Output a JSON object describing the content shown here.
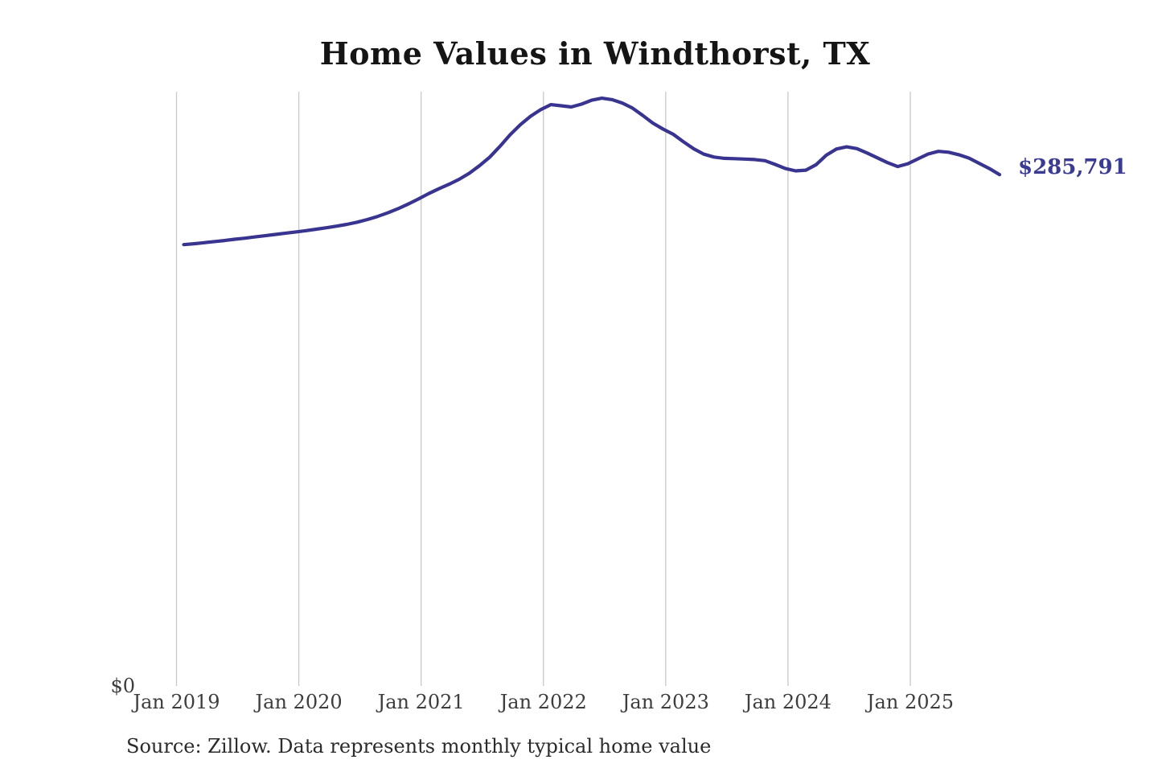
{
  "chart": {
    "title": "Home Values in Windthorst, TX",
    "end_label": "$285,791",
    "y_zero_label": "$0",
    "source": "Source: Zillow. Data represents monthly typical home value",
    "colors": {
      "line": "#39348f",
      "end_label": "#3b3b93",
      "grid": "#c9c9c9",
      "tick_text": "#3d3d3d",
      "title_text": "#151515",
      "source_text": "#2b2b2b",
      "background": "#ffffff"
    }
  },
  "chart_data": {
    "type": "line",
    "title": "Home Values in Windthorst, TX",
    "xlabel": "",
    "ylabel": "",
    "x_tick_labels": [
      "Jan 2019",
      "Jan 2020",
      "Jan 2021",
      "Jan 2022",
      "Jan 2023",
      "Jan 2024",
      "Jan 2025"
    ],
    "y_tick_labels": [
      "$0"
    ],
    "grid": "vertical-only",
    "legend": "none",
    "ylim": [
      0,
      331000
    ],
    "frequency": "monthly",
    "x_start": "Jan 2019",
    "x_end": "Sep 2025",
    "final_value": 285791,
    "final_value_label": "$285,791",
    "source": "Source: Zillow. Data represents monthly typical home value",
    "series": [
      {
        "name": "Typical home value (USD)",
        "months": [
          "2019-01",
          "2019-02",
          "2019-03",
          "2019-04",
          "2019-05",
          "2019-06",
          "2019-07",
          "2019-08",
          "2019-09",
          "2019-10",
          "2019-11",
          "2019-12",
          "2020-01",
          "2020-02",
          "2020-03",
          "2020-04",
          "2020-05",
          "2020-06",
          "2020-07",
          "2020-08",
          "2020-09",
          "2020-10",
          "2020-11",
          "2020-12",
          "2021-01",
          "2021-02",
          "2021-03",
          "2021-04",
          "2021-05",
          "2021-06",
          "2021-07",
          "2021-08",
          "2021-09",
          "2021-10",
          "2021-11",
          "2021-12",
          "2022-01",
          "2022-02",
          "2022-03",
          "2022-04",
          "2022-05",
          "2022-06",
          "2022-07",
          "2022-08",
          "2022-09",
          "2022-10",
          "2022-11",
          "2022-12",
          "2023-01",
          "2023-02",
          "2023-03",
          "2023-04",
          "2023-05",
          "2023-06",
          "2023-07",
          "2023-08",
          "2023-09",
          "2023-10",
          "2023-11",
          "2023-12",
          "2024-01",
          "2024-02",
          "2024-03",
          "2024-04",
          "2024-05",
          "2024-06",
          "2024-07",
          "2024-08",
          "2024-09",
          "2024-10",
          "2024-11",
          "2024-12",
          "2025-01",
          "2025-02",
          "2025-03",
          "2025-04",
          "2025-05",
          "2025-06",
          "2025-07",
          "2025-08",
          "2025-09"
        ],
        "values": [
          246800,
          247300,
          247900,
          248500,
          249100,
          249800,
          250400,
          251100,
          251800,
          252500,
          253200,
          253900,
          254600,
          255400,
          256200,
          257100,
          258100,
          259300,
          260800,
          262500,
          264500,
          266800,
          269400,
          272200,
          275200,
          277900,
          280400,
          283200,
          286600,
          290800,
          295500,
          301500,
          308000,
          313600,
          318300,
          322000,
          324800,
          324200,
          323500,
          325100,
          327300,
          328400,
          327600,
          325700,
          322900,
          318800,
          314500,
          311200,
          308300,
          304100,
          300200,
          297200,
          295600,
          294900,
          294700,
          294500,
          294200,
          293600,
          291500,
          289200,
          287900,
          288300,
          291300,
          296600,
          300100,
          301300,
          300300,
          297900,
          295200,
          292500,
          290300,
          291900,
          294600,
          297300,
          298800,
          298300,
          296900,
          295000,
          292100,
          289200,
          285791
        ]
      }
    ]
  }
}
